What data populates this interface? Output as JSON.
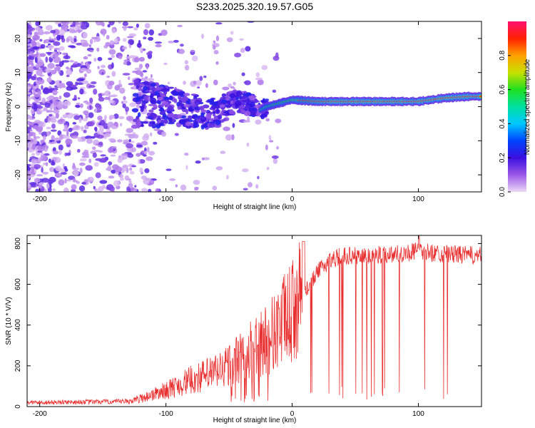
{
  "title": "S233.2025.320.19.57.G05",
  "chart_data": [
    {
      "type": "heatmap",
      "name": "spectrogram",
      "xlabel": "Height of straight line (km)",
      "ylabel": "Frequency (Hz)",
      "xlim": [
        -210,
        150
      ],
      "ylim": [
        -25,
        25
      ],
      "xticks": [
        -200,
        -100,
        0,
        100
      ],
      "xtick_labels": [
        "-200",
        "-100",
        "0",
        "100"
      ],
      "yticks": [
        -20,
        -10,
        0,
        10,
        20
      ],
      "ytick_labels": [
        "-20",
        "-10",
        "0",
        "10",
        "20"
      ],
      "colorbar": {
        "label": "Normalized spectral amplitude",
        "range": [
          0,
          1
        ],
        "ticks": [
          0,
          0.2,
          0.4,
          0.6,
          0.8
        ],
        "tick_labels": [
          "0.0",
          "0.2",
          "0.4",
          "0.6",
          "0.8"
        ],
        "colormap": "rainbow (purple to red to magenta)"
      },
      "ridge": {
        "description": "dominant frequency vs height",
        "x": [
          -120,
          -100,
          -80,
          -60,
          -45,
          -35,
          -25,
          -20,
          -10,
          0,
          20,
          40,
          60,
          80,
          100,
          110,
          120,
          140,
          150
        ],
        "y": [
          1,
          0,
          -1,
          -2,
          2,
          1,
          -1,
          0,
          1,
          2,
          1.5,
          1.5,
          1.5,
          1.5,
          1.5,
          2,
          2.5,
          3,
          3
        ]
      }
    },
    {
      "type": "line",
      "name": "snr",
      "xlabel": "Height of straight line (km)",
      "ylabel": "SNR (10 * V/V)",
      "xlim": [
        -210,
        150
      ],
      "ylim": [
        0,
        840
      ],
      "xticks": [
        -200,
        -100,
        0,
        100
      ],
      "xtick_labels": [
        "-200",
        "-100",
        "0",
        "100"
      ],
      "yticks": [
        0,
        200,
        400,
        600,
        800
      ],
      "ytick_labels": [
        "0",
        "200",
        "400",
        "600",
        "800"
      ],
      "color": "#e83030",
      "envelope": {
        "x": [
          -210,
          -130,
          -120,
          -100,
          -80,
          -60,
          -40,
          -20,
          -10,
          0,
          5,
          10,
          20,
          30,
          40,
          60,
          80,
          100,
          120,
          150
        ],
        "y": [
          20,
          25,
          40,
          80,
          130,
          170,
          240,
          330,
          400,
          460,
          520,
          560,
          660,
          720,
          740,
          740,
          750,
          760,
          750,
          740
        ]
      }
    }
  ]
}
